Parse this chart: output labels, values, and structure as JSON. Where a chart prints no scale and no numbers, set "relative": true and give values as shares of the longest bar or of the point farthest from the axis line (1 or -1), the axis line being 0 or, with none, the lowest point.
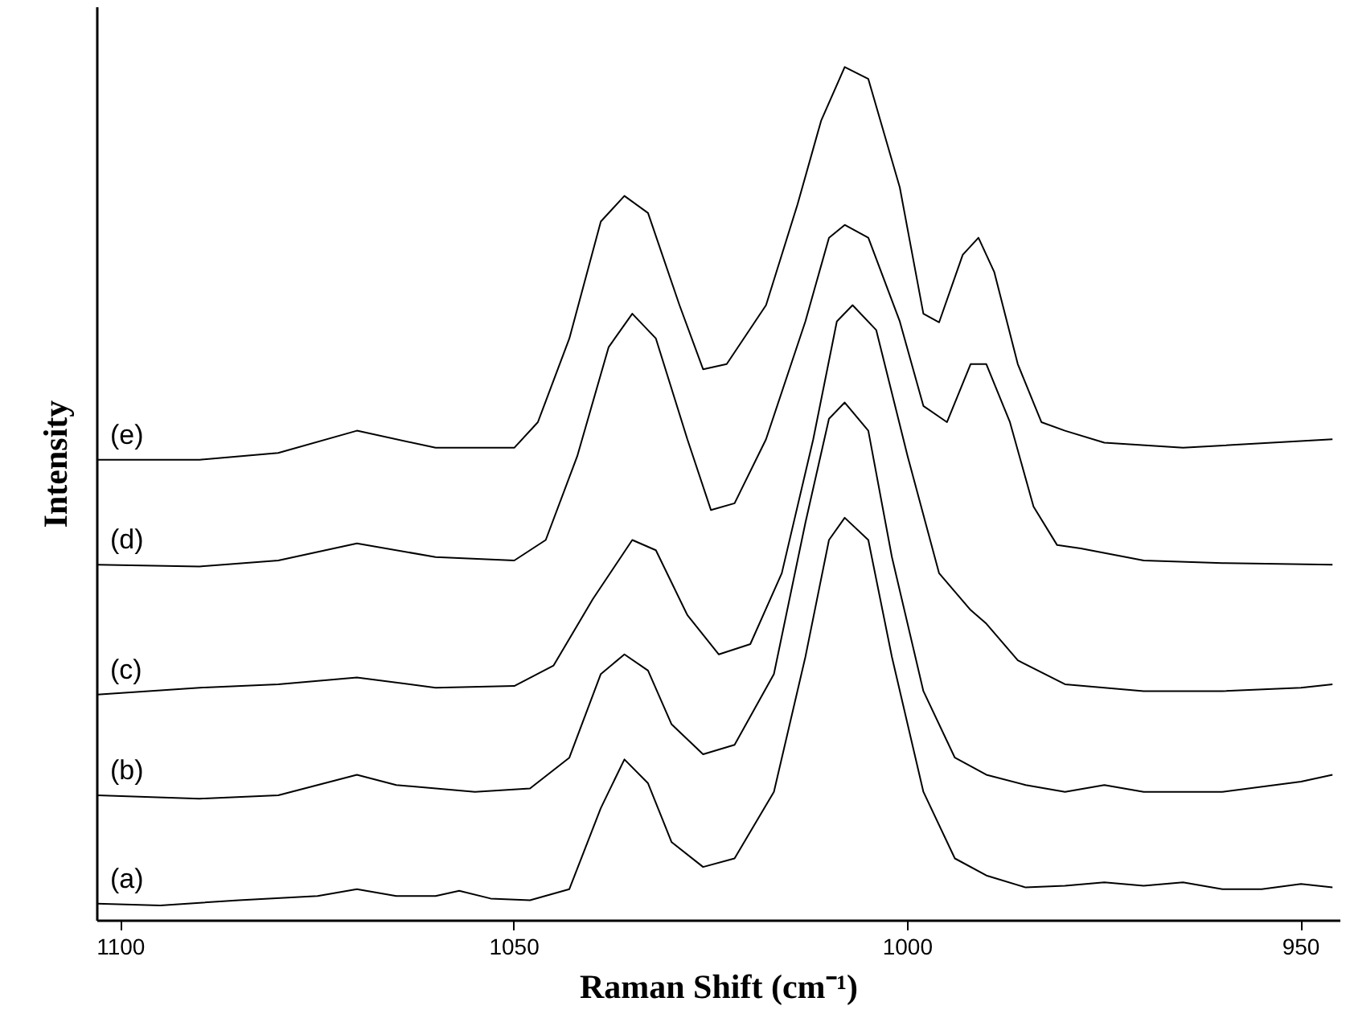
{
  "chart_data": {
    "type": "line",
    "relative": true,
    "xlabel": "Raman Shift (cm⁻¹)",
    "ylabel": "Intensity",
    "xlim": [
      1103,
      945
    ],
    "xticks": [
      1100,
      1050,
      1000,
      950
    ],
    "grid": false,
    "marker": "none",
    "line_style": "solid",
    "x": [
      1103,
      1095,
      1085,
      1075,
      1070,
      1065,
      1060,
      1057,
      1053,
      1048,
      1043,
      1039,
      1036,
      1033,
      1030,
      1026,
      1022,
      1017,
      1013,
      1010,
      1008,
      1005,
      1002,
      998,
      994,
      990,
      985,
      980,
      975,
      970,
      965,
      960,
      955,
      950,
      946
    ],
    "series": [
      {
        "name": "(a)",
        "color": "#000000",
        "values": [
          0.02,
          0.018,
          0.024,
          0.029,
          0.037,
          0.029,
          0.029,
          0.035,
          0.026,
          0.024,
          0.037,
          0.132,
          0.189,
          0.161,
          0.092,
          0.063,
          0.073,
          0.151,
          0.309,
          0.446,
          0.472,
          0.446,
          0.309,
          0.151,
          0.073,
          0.053,
          0.039,
          0.041,
          0.045,
          0.041,
          0.045,
          0.037,
          0.037,
          0.043,
          0.039
        ]
      },
      {
        "name": "(b)",
        "color": "#000000",
        "x": [
          1103,
          1090,
          1080,
          1070,
          1065,
          1055,
          1048,
          1043,
          1039,
          1036,
          1033,
          1030,
          1026,
          1022,
          1017,
          1013,
          1010,
          1008,
          1005,
          1002,
          998,
          994,
          990,
          985,
          980,
          975,
          970,
          960,
          950,
          946
        ],
        "values": [
          0.147,
          0.143,
          0.147,
          0.171,
          0.159,
          0.151,
          0.155,
          0.191,
          0.289,
          0.312,
          0.293,
          0.23,
          0.195,
          0.206,
          0.289,
          0.466,
          0.588,
          0.607,
          0.574,
          0.426,
          0.269,
          0.191,
          0.171,
          0.159,
          0.151,
          0.159,
          0.151,
          0.151,
          0.163,
          0.171
        ]
      },
      {
        "name": "(c)",
        "color": "#000000",
        "x": [
          1103,
          1090,
          1080,
          1070,
          1060,
          1050,
          1045,
          1040,
          1035,
          1032,
          1028,
          1024,
          1020,
          1016,
          1012,
          1009,
          1007,
          1004,
          1000,
          996,
          992,
          990,
          986,
          980,
          970,
          960,
          950,
          946
        ],
        "values": [
          0.265,
          0.273,
          0.277,
          0.285,
          0.273,
          0.275,
          0.299,
          0.377,
          0.446,
          0.434,
          0.358,
          0.312,
          0.324,
          0.407,
          0.564,
          0.702,
          0.721,
          0.692,
          0.544,
          0.407,
          0.364,
          0.348,
          0.305,
          0.277,
          0.269,
          0.269,
          0.273,
          0.277
        ]
      },
      {
        "name": "(d)",
        "color": "#000000",
        "x": [
          1103,
          1090,
          1080,
          1070,
          1060,
          1050,
          1046,
          1042,
          1038,
          1035,
          1032,
          1028,
          1025,
          1022,
          1018,
          1013,
          1010,
          1008,
          1005,
          1001,
          998,
          995,
          992,
          990,
          987,
          984,
          981,
          978,
          970,
          960,
          946
        ],
        "values": [
          0.417,
          0.415,
          0.422,
          0.442,
          0.426,
          0.422,
          0.446,
          0.544,
          0.672,
          0.711,
          0.682,
          0.564,
          0.481,
          0.489,
          0.564,
          0.702,
          0.8,
          0.815,
          0.8,
          0.702,
          0.603,
          0.584,
          0.652,
          0.652,
          0.584,
          0.485,
          0.44,
          0.436,
          0.422,
          0.419,
          0.417
        ]
      },
      {
        "name": "(e)",
        "color": "#000000",
        "x": [
          1103,
          1090,
          1080,
          1070,
          1060,
          1050,
          1047,
          1043,
          1039,
          1036,
          1033,
          1029,
          1026,
          1023,
          1018,
          1014,
          1011,
          1008,
          1005,
          1001,
          998,
          996,
          993,
          991,
          989,
          986,
          983,
          980,
          975,
          965,
          946
        ],
        "values": [
          0.54,
          0.54,
          0.548,
          0.574,
          0.554,
          0.554,
          0.584,
          0.682,
          0.819,
          0.849,
          0.829,
          0.721,
          0.646,
          0.652,
          0.721,
          0.839,
          0.937,
          1.0,
          0.986,
          0.859,
          0.711,
          0.701,
          0.78,
          0.8,
          0.76,
          0.652,
          0.584,
          0.574,
          0.56,
          0.554,
          0.564
        ]
      }
    ]
  }
}
